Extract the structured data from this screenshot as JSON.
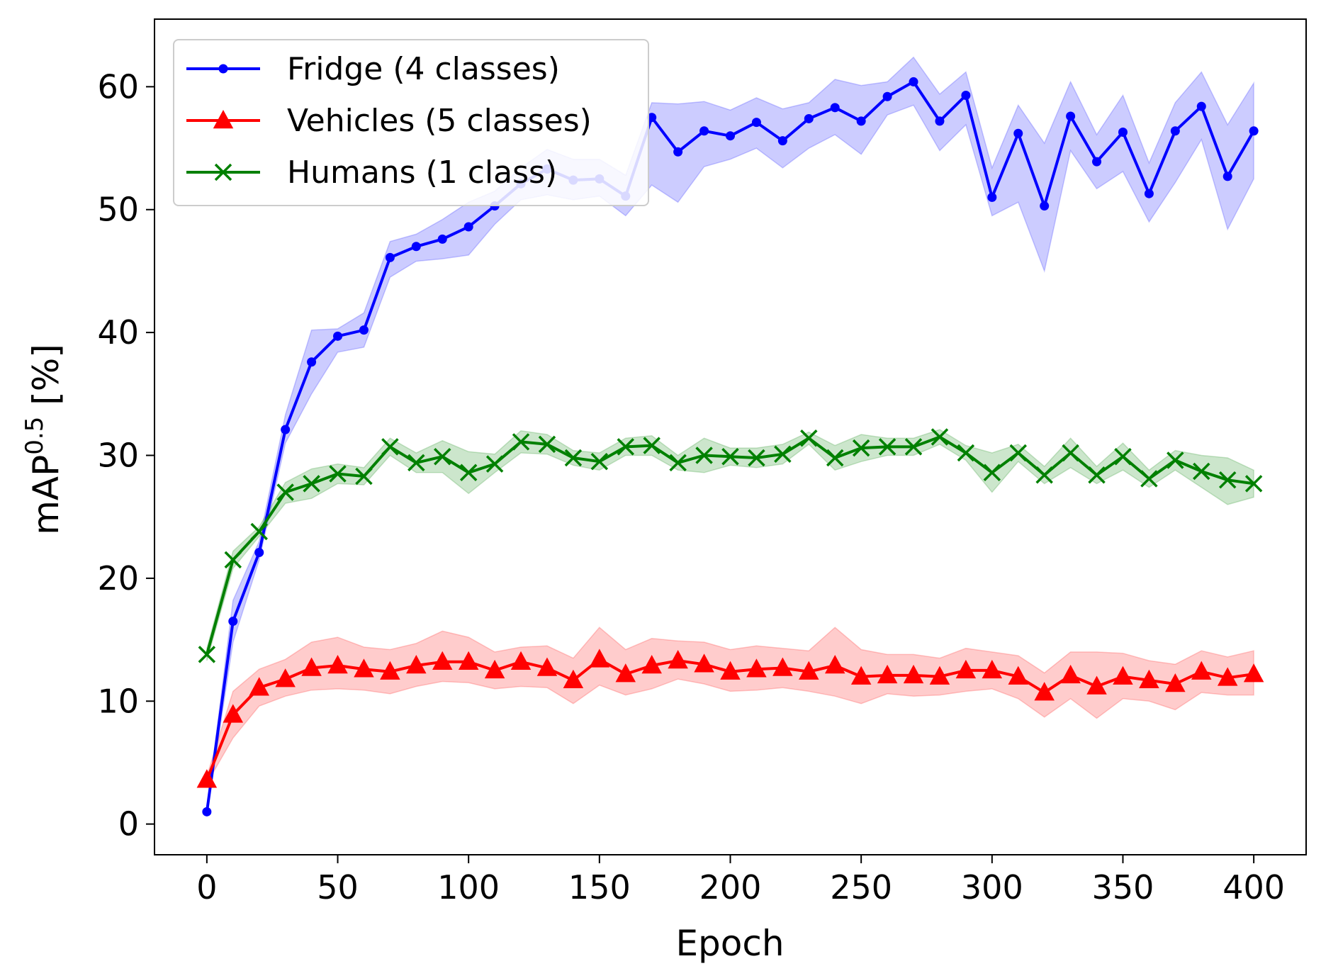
{
  "chart_data": {
    "type": "line",
    "xlabel": "Epoch",
    "ylabel_main": "mAP",
    "ylabel_sup": "0.5",
    "ylabel_suffix": " [%]",
    "xlim": [
      -20,
      420
    ],
    "ylim": [
      -2.5,
      65.5
    ],
    "xticks": [
      0,
      50,
      100,
      150,
      200,
      250,
      300,
      350,
      400
    ],
    "yticks": [
      0,
      10,
      20,
      30,
      40,
      50,
      60
    ],
    "grid": false,
    "legend_position": "top-left",
    "x": [
      0,
      10,
      20,
      30,
      40,
      50,
      60,
      70,
      80,
      90,
      100,
      110,
      120,
      130,
      140,
      150,
      160,
      170,
      180,
      190,
      200,
      210,
      220,
      230,
      240,
      250,
      260,
      270,
      280,
      290,
      300,
      310,
      320,
      330,
      340,
      350,
      360,
      370,
      380,
      390,
      400
    ],
    "series": [
      {
        "name": "Fridge (4 classes)",
        "color": "#0000ff",
        "band_color": "#0000ff",
        "marker": "dot",
        "values": [
          1.0,
          16.5,
          22.1,
          32.1,
          37.6,
          39.7,
          40.2,
          46.1,
          47.0,
          47.6,
          48.6,
          50.3,
          52.1,
          53.3,
          52.4,
          52.5,
          51.1,
          57.5,
          54.7,
          56.4,
          56.0,
          57.1,
          55.6,
          57.4,
          58.3,
          57.2,
          59.2,
          60.4,
          57.2,
          59.3,
          51.0,
          56.2,
          50.3,
          57.6,
          53.9,
          56.3,
          51.3,
          56.4,
          58.4,
          52.7,
          56.4
        ],
        "lower": [
          0.8,
          14.8,
          21.5,
          31.0,
          35.0,
          38.4,
          38.8,
          44.5,
          45.8,
          46.0,
          46.3,
          48.8,
          50.8,
          51.2,
          50.8,
          51.1,
          49.5,
          52.0,
          50.6,
          53.5,
          54.1,
          55.0,
          53.4,
          55.0,
          56.1,
          54.5,
          57.7,
          58.5,
          54.8,
          56.9,
          49.5,
          50.6,
          45.0,
          54.8,
          51.7,
          53.1,
          49.0,
          52.2,
          55.7,
          48.4,
          52.5
        ],
        "upper": [
          1.2,
          18.2,
          23.0,
          33.3,
          40.2,
          40.3,
          41.6,
          47.4,
          48.0,
          49.2,
          50.6,
          51.5,
          53.4,
          54.9,
          54.1,
          54.1,
          52.8,
          58.7,
          58.6,
          58.8,
          58.1,
          59.1,
          58.2,
          58.7,
          60.6,
          60.1,
          60.4,
          62.4,
          59.4,
          61.2,
          53.4,
          58.5,
          55.4,
          60.4,
          56.1,
          59.3,
          53.8,
          58.7,
          61.2,
          56.9,
          60.3
        ]
      },
      {
        "name": "Vehicles (5 classes)",
        "color": "#ff0000",
        "band_color": "#ff0000",
        "marker": "triangle",
        "values": [
          3.6,
          8.9,
          11.1,
          11.8,
          12.7,
          12.9,
          12.6,
          12.4,
          12.9,
          13.2,
          13.2,
          12.5,
          13.2,
          12.7,
          11.7,
          13.4,
          12.2,
          12.9,
          13.3,
          13.0,
          12.4,
          12.6,
          12.7,
          12.4,
          12.9,
          12.0,
          12.1,
          12.1,
          12.0,
          12.5,
          12.5,
          12.0,
          10.7,
          12.1,
          11.2,
          12.0,
          11.7,
          11.4,
          12.4,
          11.9,
          12.2
        ],
        "lower": [
          3.3,
          7.0,
          9.6,
          10.4,
          10.9,
          11.0,
          10.9,
          10.6,
          11.2,
          11.6,
          11.5,
          11.0,
          11.2,
          11.1,
          9.8,
          11.3,
          10.5,
          11.0,
          11.8,
          11.4,
          10.8,
          10.9,
          11.1,
          10.8,
          10.4,
          9.8,
          10.6,
          10.4,
          10.5,
          10.8,
          11.0,
          10.2,
          8.7,
          10.2,
          8.6,
          10.2,
          10.0,
          9.3,
          10.7,
          10.5,
          10.5
        ],
        "upper": [
          3.9,
          10.8,
          12.6,
          13.4,
          14.8,
          15.2,
          14.4,
          14.2,
          14.7,
          15.7,
          15.2,
          14.0,
          14.4,
          14.5,
          13.5,
          16.0,
          14.2,
          15.1,
          14.9,
          14.8,
          14.2,
          14.5,
          14.3,
          14.1,
          16.0,
          14.2,
          13.8,
          13.8,
          13.5,
          14.3,
          14.0,
          13.7,
          12.3,
          14.0,
          14.0,
          13.9,
          13.3,
          13.0,
          14.1,
          13.6,
          14.1
        ]
      },
      {
        "name": "Humans (1 class)",
        "color": "#008000",
        "band_color": "#008000",
        "marker": "x",
        "values": [
          13.8,
          21.5,
          23.8,
          27.0,
          27.7,
          28.5,
          28.3,
          30.7,
          29.4,
          29.9,
          28.6,
          29.3,
          31.1,
          30.9,
          29.8,
          29.5,
          30.7,
          30.8,
          29.4,
          30.0,
          29.9,
          29.8,
          30.1,
          31.4,
          29.8,
          30.6,
          30.7,
          30.7,
          31.5,
          30.2,
          28.6,
          30.2,
          28.4,
          30.2,
          28.4,
          29.9,
          28.1,
          29.6,
          28.7,
          28.0,
          27.7
        ],
        "lower": [
          13.3,
          20.8,
          23.4,
          26.1,
          26.5,
          27.7,
          27.6,
          30.0,
          28.6,
          28.6,
          26.9,
          28.6,
          30.2,
          30.1,
          29.2,
          28.8,
          30.0,
          30.0,
          28.8,
          28.6,
          29.2,
          29.0,
          29.3,
          30.9,
          28.8,
          29.5,
          30.0,
          30.0,
          30.9,
          29.6,
          27.0,
          29.5,
          27.7,
          29.0,
          27.7,
          28.8,
          27.4,
          28.8,
          27.4,
          26.0,
          26.6
        ],
        "upper": [
          14.3,
          22.2,
          24.2,
          27.8,
          28.9,
          29.3,
          29.0,
          31.4,
          30.2,
          31.2,
          30.3,
          30.1,
          32.0,
          31.7,
          30.4,
          30.2,
          31.4,
          31.6,
          30.0,
          31.4,
          30.6,
          30.6,
          30.9,
          31.9,
          30.8,
          31.7,
          31.4,
          31.4,
          32.1,
          30.8,
          30.2,
          30.9,
          29.1,
          31.4,
          29.1,
          31.0,
          28.8,
          30.4,
          30.0,
          29.8,
          28.8
        ]
      }
    ]
  }
}
